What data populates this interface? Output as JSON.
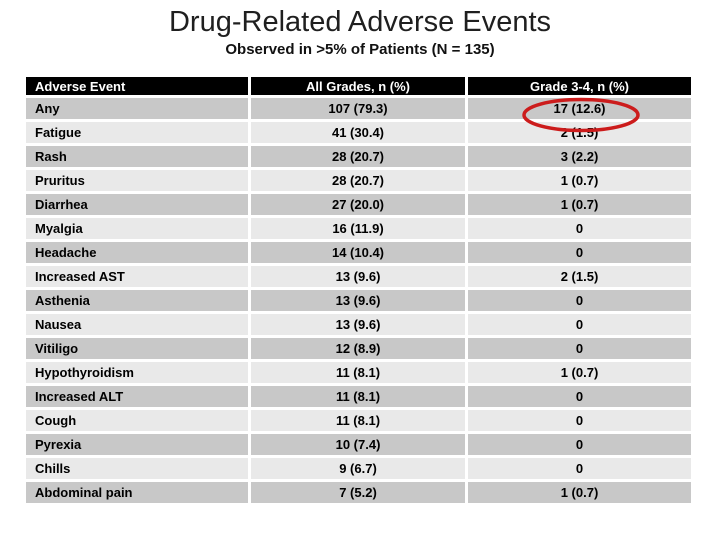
{
  "slide": {
    "title": "Drug-Related Adverse Events",
    "subtitle": "Observed in >5% of Patients (N = 135)"
  },
  "table": {
    "columns": [
      "Adverse Event",
      "All Grades, n (%)",
      "Grade 3-4, n (%)"
    ],
    "rows": [
      {
        "event": "Any",
        "all_grades": "107 (79.3)",
        "grade_3_4": "17 (12.6)",
        "circled": true
      },
      {
        "event": "Fatigue",
        "all_grades": "41 (30.4)",
        "grade_3_4": "2 (1.5)"
      },
      {
        "event": "Rash",
        "all_grades": "28 (20.7)",
        "grade_3_4": "3 (2.2)"
      },
      {
        "event": "Pruritus",
        "all_grades": "28 (20.7)",
        "grade_3_4": "1 (0.7)"
      },
      {
        "event": "Diarrhea",
        "all_grades": "27 (20.0)",
        "grade_3_4": "1 (0.7)"
      },
      {
        "event": "Myalgia",
        "all_grades": "16 (11.9)",
        "grade_3_4": "0"
      },
      {
        "event": "Headache",
        "all_grades": "14 (10.4)",
        "grade_3_4": "0"
      },
      {
        "event": "Increased AST",
        "all_grades": "13 (9.6)",
        "grade_3_4": "2 (1.5)"
      },
      {
        "event": "Asthenia",
        "all_grades": "13 (9.6)",
        "grade_3_4": "0"
      },
      {
        "event": "Nausea",
        "all_grades": "13 (9.6)",
        "grade_3_4": "0"
      },
      {
        "event": "Vitiligo",
        "all_grades": "12 (8.9)",
        "grade_3_4": "0"
      },
      {
        "event": "Hypothyroidism",
        "all_grades": "11 (8.1)",
        "grade_3_4": "1 (0.7)"
      },
      {
        "event": "Increased ALT",
        "all_grades": "11 (8.1)",
        "grade_3_4": "0"
      },
      {
        "event": "Cough",
        "all_grades": "11 (8.1)",
        "grade_3_4": "0"
      },
      {
        "event": "Pyrexia",
        "all_grades": "10 (7.4)",
        "grade_3_4": "0"
      },
      {
        "event": "Chills",
        "all_grades": "9 (6.7)",
        "grade_3_4": "0"
      },
      {
        "event": "Abdominal pain",
        "all_grades": "7 (5.2)",
        "grade_3_4": "1 (0.7)"
      }
    ]
  },
  "annotation": {
    "shape": "ellipse",
    "highlights_value": "17 (12.6)",
    "color": "#cc1c1c"
  },
  "colors": {
    "background": "#ffffff",
    "title_text": "#1f1f1f",
    "subtitle_text": "#111111",
    "header_bg": "#000000",
    "header_text": "#ffffff",
    "row_dark": "#c8c8c8",
    "row_light": "#e9e9e9",
    "cell_text": "#000000",
    "annotation_red": "#cc1c1c"
  }
}
